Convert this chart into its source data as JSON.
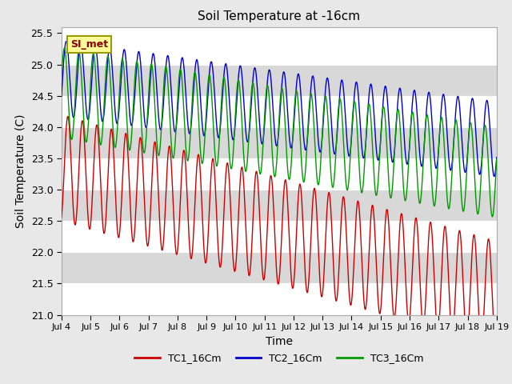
{
  "title": "Soil Temperature at -16cm",
  "xlabel": "Time",
  "ylabel": "Soil Temperature (C)",
  "ylim": [
    21.0,
    25.6
  ],
  "yticks": [
    21.0,
    21.5,
    22.0,
    22.5,
    23.0,
    23.5,
    24.0,
    24.5,
    25.0,
    25.5
  ],
  "annotation_text": "SI_met",
  "tc1_color": "#cc0000",
  "tc2_color": "#0000cc",
  "tc3_color": "#009900",
  "legend_labels": [
    "TC1_16Cm",
    "TC2_16Cm",
    "TC3_16Cm"
  ],
  "background_color": "#e8e8e8",
  "band_colors": [
    "#ffffff",
    "#d8d8d8"
  ],
  "n_points": 1500,
  "total_days": 15
}
